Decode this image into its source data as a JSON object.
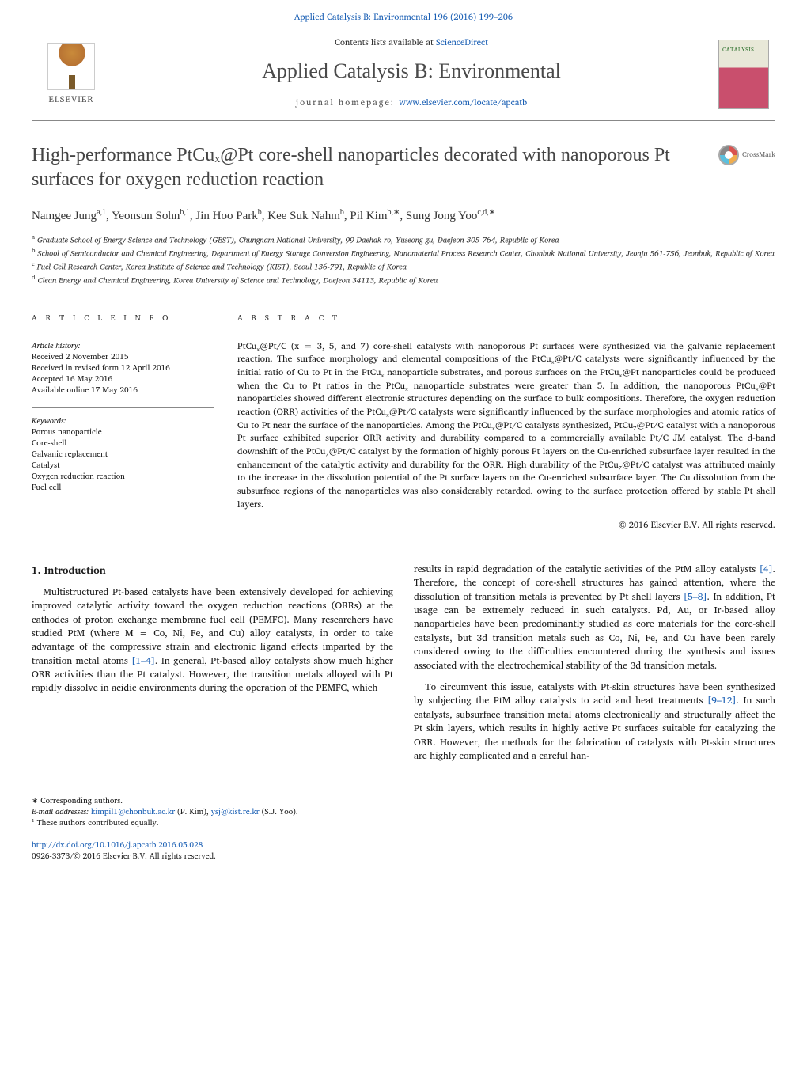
{
  "colors": {
    "link": "#1a5fb4",
    "text": "#1a1a1a",
    "muted": "#4a4a4a",
    "rule": "#888",
    "cover_top": "#e8e8d8",
    "cover_bottom": "#c94f6d",
    "background": "#ffffff"
  },
  "typography": {
    "body_pt": 12,
    "title_pt": 24,
    "journal_pt": 26,
    "small_pt": 10,
    "font_family_serif": "Georgia, serif"
  },
  "top": {
    "citation": "Applied Catalysis B: Environmental 196 (2016) 199–206"
  },
  "header": {
    "contents_prefix": "Contents lists available at ",
    "contents_link": "ScienceDirect",
    "journal": "Applied Catalysis B: Environmental",
    "homepage_prefix": "journal homepage: ",
    "homepage_url": "www.elsevier.com/locate/apcatb",
    "publisher": "ELSEVIER",
    "cover_label": "CATALYSIS"
  },
  "crossmark": {
    "label": "CrossMark"
  },
  "article": {
    "title": "High-performance PtCuₓ@Pt core-shell nanoparticles decorated with nanoporous Pt surfaces for oxygen reduction reaction",
    "authors_html": "Namgee Jung<sup>a,1</sup>, Yeonsun Sohn<sup>b,1</sup>, Jin Hoo Park<sup>b</sup>, Kee Suk Nahm<sup>b</sup>, Pil Kim<sup>b,∗</sup>, Sung Jong Yoo<sup>c,d,∗</sup>",
    "affiliations": [
      {
        "key": "a",
        "text": "Graduate School of Energy Science and Technology (GEST), Chungnam National University, 99 Daehak-ro, Yuseong-gu, Daejeon 305-764, Republic of Korea"
      },
      {
        "key": "b",
        "text": "School of Semiconductor and Chemical Engineering, Department of Energy Storage Conversion Engineering, Nanomaterial Process Research Center, Chonbuk National University, Jeonju 561-756, Jeonbuk, Republic of Korea"
      },
      {
        "key": "c",
        "text": "Fuel Cell Research Center, Korea Institute of Science and Technology (KIST), Seoul 136-791, Republic of Korea"
      },
      {
        "key": "d",
        "text": "Clean Energy and Chemical Engineering, Korea University of Science and Technology, Daejeon 34113, Republic of Korea"
      }
    ]
  },
  "info": {
    "heading": "A R T I C L E   I N F O",
    "history_label": "Article history:",
    "history": [
      "Received 2 November 2015",
      "Received in revised form 12 April 2016",
      "Accepted 16 May 2016",
      "Available online 17 May 2016"
    ],
    "keywords_label": "Keywords:",
    "keywords": [
      "Porous nanoparticle",
      "Core-shell",
      "Galvanic replacement",
      "Catalyst",
      "Oxygen reduction reaction",
      "Fuel cell"
    ]
  },
  "abstract": {
    "heading": "A B S T R A C T",
    "text": "PtCuₓ@Pt/C (x = 3, 5, and 7) core-shell catalysts with nanoporous Pt surfaces were synthesized via the galvanic replacement reaction. The surface morphology and elemental compositions of the PtCuₓ@Pt/C catalysts were significantly influenced by the initial ratio of Cu to Pt in the PtCuₓ nanoparticle substrates, and porous surfaces on the PtCuₓ@Pt nanoparticles could be produced when the Cu to Pt ratios in the PtCuₓ nanoparticle substrates were greater than 5. In addition, the nanoporous PtCuₓ@Pt nanoparticles showed different electronic structures depending on the surface to bulk compositions. Therefore, the oxygen reduction reaction (ORR) activities of the PtCuₓ@Pt/C catalysts were significantly influenced by the surface morphologies and atomic ratios of Cu to Pt near the surface of the nanoparticles. Among the PtCuₓ@Pt/C catalysts synthesized, PtCu₇@Pt/C catalyst with a nanoporous Pt surface exhibited superior ORR activity and durability compared to a commercially available Pt/C JM catalyst. The d-band downshift of the PtCu₇@Pt/C catalyst by the formation of highly porous Pt layers on the Cu-enriched subsurface layer resulted in the enhancement of the catalytic activity and durability for the ORR. High durability of the PtCu₇@Pt/C catalyst was attributed mainly to the increase in the dissolution potential of the Pt surface layers on the Cu-enriched subsurface layer. The Cu dissolution from the subsurface regions of the nanoparticles was also considerably retarded, owing to the surface protection offered by stable Pt shell layers.",
    "copyright": "© 2016 Elsevier B.V. All rights reserved."
  },
  "body": {
    "section_number": "1.",
    "section_title": "Introduction",
    "col1_p1": "Multistructured Pt-based catalysts have been extensively developed for achieving improved catalytic activity toward the oxygen reduction reactions (ORRs) at the cathodes of proton exchange membrane fuel cell (PEMFC). Many researchers have studied PtM (where M = Co, Ni, Fe, and Cu) alloy catalysts, in order to take advantage of the compressive strain and electronic ligand effects imparted by the transition metal atoms ",
    "col1_ref1": "[1–4]",
    "col1_p1b": ". In general, Pt-based alloy catalysts show much higher ORR activities than the Pt catalyst. However, the transition metals alloyed with Pt rapidly dissolve in acidic environments during the operation of the PEMFC, which",
    "col2_p1": "results in rapid degradation of the catalytic activities of the PtM alloy catalysts ",
    "col2_ref1": "[4]",
    "col2_p1b": ". Therefore, the concept of core-shell structures has gained attention, where the dissolution of transition metals is prevented by Pt shell layers ",
    "col2_ref2": "[5–8]",
    "col2_p1c": ". In addition, Pt usage can be extremely reduced in such catalysts. Pd, Au, or Ir-based alloy nanoparticles have been predominantly studied as core materials for the core-shell catalysts, but 3d transition metals such as Co, Ni, Fe, and Cu have been rarely considered owing to the difficulties encountered during the synthesis and issues associated with the electrochemical stability of the 3d transition metals.",
    "col2_p2": "To circumvent this issue, catalysts with Pt-skin structures have been synthesized by subjecting the PtM alloy catalysts to acid and heat treatments ",
    "col2_ref3": "[9–12]",
    "col2_p2b": ". In such catalysts, subsurface transition metal atoms electronically and structurally affect the Pt skin layers, which results in highly active Pt surfaces suitable for catalyzing the ORR. However, the methods for the fabrication of catalysts with Pt-skin structures are highly complicated and a careful han-"
  },
  "footnotes": {
    "corr_label": "∗ Corresponding authors.",
    "email_label": "E-mail addresses: ",
    "email1": "kimpil1@chonbuk.ac.kr",
    "email1_who": " (P. Kim), ",
    "email2": "ysj@kist.re.kr",
    "email2_who": " (S.J. Yoo).",
    "equal": "¹ These authors contributed equally."
  },
  "footer": {
    "doi": "http://dx.doi.org/10.1016/j.apcatb.2016.05.028",
    "issn_line": "0926-3373/© 2016 Elsevier B.V. All rights reserved."
  }
}
